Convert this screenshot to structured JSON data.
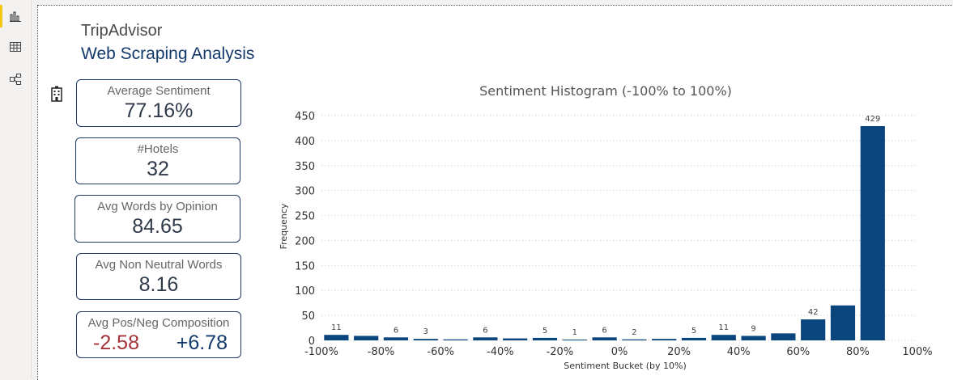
{
  "sidebar": {
    "items": [
      {
        "name": "report-view",
        "active": true
      },
      {
        "name": "data-view",
        "active": false
      },
      {
        "name": "model-view",
        "active": false
      }
    ]
  },
  "header": {
    "title": "TripAdvisor",
    "subtitle": "Web Scraping Analysis"
  },
  "cards": [
    {
      "label": "Average Sentiment",
      "value": "77.16%"
    },
    {
      "label": "#Hotels",
      "value": "32"
    },
    {
      "label": "Avg Words by Opinion",
      "value": "84.65"
    },
    {
      "label": "Avg Non Neutral Words",
      "value": "8.16"
    }
  ],
  "composition": {
    "label": "Avg Pos/Neg Composition",
    "negative": "-2.58",
    "positive": "+6.78"
  },
  "colors": {
    "bar": "#0b457e",
    "accent": "#f2c811",
    "negative": "#a4343a"
  },
  "chart_data": {
    "type": "bar",
    "title": "Sentiment Histogram (-100% to 100%)",
    "xlabel": "Sentiment Bucket (by 10%)",
    "ylabel": "Frequency",
    "xlim": [
      -100,
      100
    ],
    "ylim": [
      0,
      450
    ],
    "yticks": [
      0,
      50,
      100,
      150,
      200,
      250,
      300,
      350,
      400,
      450
    ],
    "xticks": [
      -100,
      -80,
      -60,
      -40,
      -20,
      0,
      20,
      40,
      60,
      80,
      100
    ],
    "xtick_labels": [
      "-100%",
      "-80%",
      "-60%",
      "-40%",
      "-20%",
      "0%",
      "20%",
      "40%",
      "60%",
      "80%",
      "100%"
    ],
    "grid": true,
    "bin_width": 10,
    "bins": [
      {
        "x": -95,
        "value": 11,
        "label": "11"
      },
      {
        "x": -85,
        "value": 9,
        "label": ""
      },
      {
        "x": -75,
        "value": 6,
        "label": "6"
      },
      {
        "x": -65,
        "value": 3,
        "label": "3"
      },
      {
        "x": -55,
        "value": 2,
        "label": ""
      },
      {
        "x": -45,
        "value": 6,
        "label": "6"
      },
      {
        "x": -35,
        "value": 4,
        "label": ""
      },
      {
        "x": -25,
        "value": 5,
        "label": "5"
      },
      {
        "x": -15,
        "value": 1,
        "label": "1"
      },
      {
        "x": -5,
        "value": 6,
        "label": "6"
      },
      {
        "x": 5,
        "value": 2,
        "label": "2"
      },
      {
        "x": 15,
        "value": 3,
        "label": ""
      },
      {
        "x": 25,
        "value": 5,
        "label": "5"
      },
      {
        "x": 35,
        "value": 11,
        "label": "11"
      },
      {
        "x": 45,
        "value": 9,
        "label": "9"
      },
      {
        "x": 55,
        "value": 14,
        "label": ""
      },
      {
        "x": 65,
        "value": 42,
        "label": "42"
      },
      {
        "x": 75,
        "value": 70,
        "label": ""
      },
      {
        "x": 85,
        "value": 429,
        "label": "429"
      }
    ]
  }
}
